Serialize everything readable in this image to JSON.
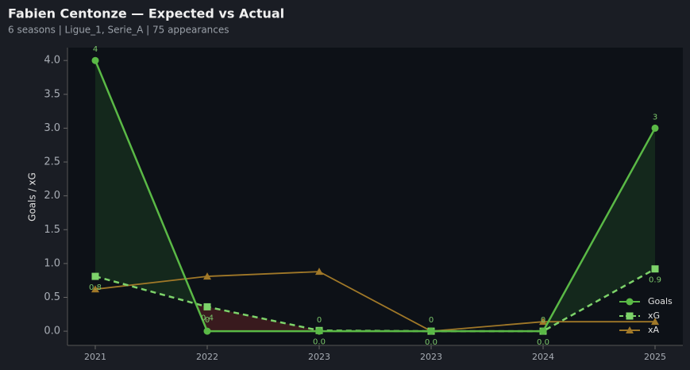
{
  "chart_data": {
    "type": "line",
    "title": "Fabien Centonze — Expected vs Actual",
    "subtitle": "6 seasons | Ligue_1, Serie_A | 75 appearances",
    "y_label": "Goals / xG",
    "categories": [
      "2021",
      "2022",
      "2023",
      "2023",
      "2024",
      "2025"
    ],
    "series": [
      {
        "name": "Goals",
        "color": "#5ab946",
        "marker": "circle",
        "dash": false,
        "values": [
          4,
          0,
          0,
          0,
          0,
          3
        ]
      },
      {
        "name": "xG",
        "color": "#7dd36a",
        "marker": "square",
        "dash": true,
        "values": [
          0.81,
          0.36,
          0.01,
          0,
          0,
          0.92
        ],
        "value_labels": [
          "0.8",
          "0.4",
          "0.0",
          "0.0",
          "0.0",
          "0.9"
        ]
      },
      {
        "name": "xA",
        "color": "#a07828",
        "marker": "triangle",
        "dash": false,
        "values": [
          0.62,
          0.81,
          0.88,
          0,
          0.14,
          0.14
        ]
      }
    ],
    "ylim": [
      -0.21,
      4.19
    ],
    "yticks": [
      {
        "value": 0,
        "label": "0.0"
      },
      {
        "value": 0.5,
        "label": "0.5"
      },
      {
        "value": 1,
        "label": "1.0"
      },
      {
        "value": 1.5,
        "label": "1.5"
      },
      {
        "value": 2,
        "label": "2.0"
      },
      {
        "value": 2.5,
        "label": "2.5"
      },
      {
        "value": 3,
        "label": "3.0"
      },
      {
        "value": 3.5,
        "label": "3.5"
      },
      {
        "value": 4,
        "label": "4.0"
      }
    ],
    "legend": "lower right"
  }
}
